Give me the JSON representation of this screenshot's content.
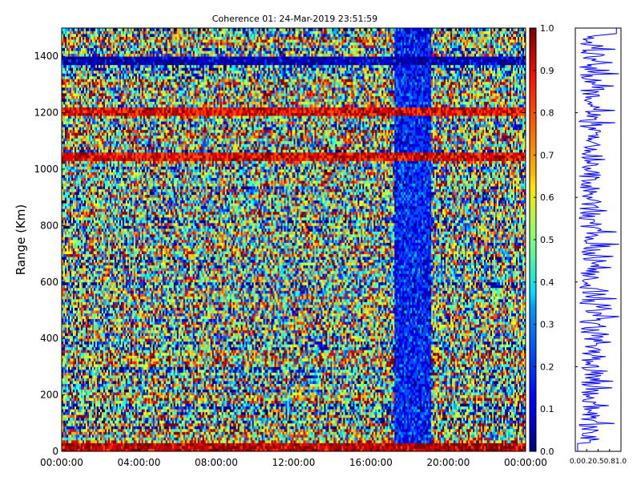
{
  "chart_data": [
    {
      "type": "heatmap",
      "title": "Coherence 01: 24-Mar-2019 23:51:59",
      "xlabel": "",
      "ylabel": "Range (Km)",
      "xlim_hours": [
        0,
        24
      ],
      "x_ticks": [
        "00:00:00",
        "04:00:00",
        "08:00:00",
        "12:00:00",
        "16:00:00",
        "20:00:00",
        "00:00:00"
      ],
      "ylim": [
        0,
        1500
      ],
      "y_ticks": [
        0,
        200,
        400,
        600,
        800,
        1000,
        1200,
        1400
      ],
      "colormap": "jet",
      "value_range": [
        0.0,
        1.0
      ],
      "colorbar_ticks": [
        "0.0",
        "0.1",
        "0.2",
        "0.3",
        "0.4",
        "0.5",
        "0.6",
        "0.7",
        "0.8",
        "0.9",
        "1.0"
      ],
      "features": [
        {
          "description": "low coherence region",
          "x_hours": [
            17.2,
            19.1
          ],
          "y": [
            0,
            1500
          ],
          "value": 0.15
        },
        {
          "description": "high coherence band near ground",
          "x_hours": [
            0,
            24
          ],
          "y": [
            0,
            30
          ],
          "value": 0.95
        },
        {
          "description": "high coherence range band",
          "x_hours": [
            0,
            24
          ],
          "y": [
            1030,
            1060
          ],
          "value": 0.9
        },
        {
          "description": "high coherence range band",
          "x_hours": [
            0,
            24
          ],
          "y": [
            1190,
            1220
          ],
          "value": 0.9
        },
        {
          "description": "low coherence range band",
          "x_hours": [
            0,
            24
          ],
          "y": [
            1375,
            1395
          ],
          "value": 0.05
        }
      ]
    },
    {
      "type": "line",
      "title": "",
      "xlabel": "",
      "ylabel": "",
      "xlim": [
        0,
        1
      ],
      "x_ticks": [
        "0.0",
        "0.2",
        "0.5",
        "0.8",
        "1.0"
      ],
      "ylim": [
        0,
        1500
      ],
      "series_color": "#0000ff"
    }
  ]
}
